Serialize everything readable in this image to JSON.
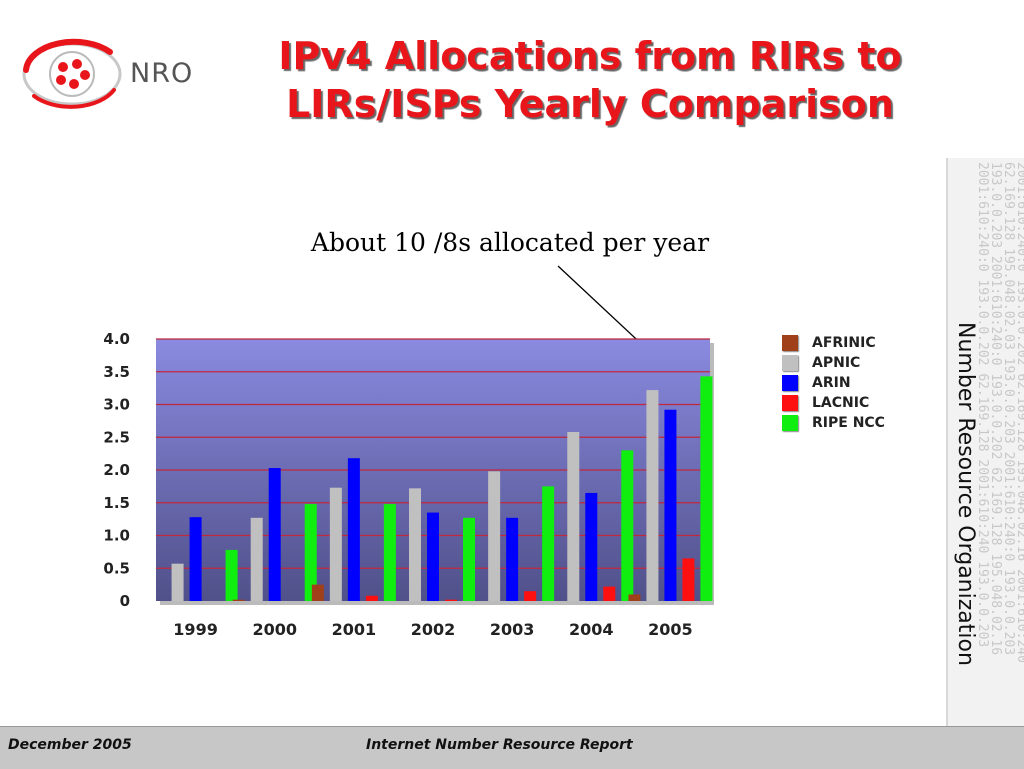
{
  "header": {
    "logo_text": "NRO",
    "title_line1": "IPv4 Allocations from RIRs to",
    "title_line2": "LIRs/ISPs Yearly Comparison"
  },
  "annotation": {
    "text": "About 10 /8s allocated per year"
  },
  "sidebar": {
    "label": "Number Resource Organization",
    "deco_lines": [
      "2001:610:240:0 193.0.0.202 62.169.128 195.048.02.16 2001:610:240",
      "62.169.128 195.048.02.03 193.0.0.203 2001:610:240:0 193.0.0.203",
      "193.0.0.203 2001:610:240:0 193.0.0.202 62.169.128 195.048.02.16",
      "2001:610:240:0 193.0.0.202 62.169.128 2001:610:240 193.0.0.203"
    ]
  },
  "footer": {
    "date": "December  2005",
    "report": "Internet Number Resource Report"
  },
  "colors": {
    "title": "#e8161b",
    "plot_top": "#8a8ae0",
    "plot_bottom": "#50508a",
    "gridline": "#c0283c"
  },
  "chart_data": {
    "type": "bar",
    "title": "",
    "xlabel": "",
    "ylabel": "",
    "ylim": [
      0,
      4
    ],
    "y_ticks": [
      "0",
      "0.5",
      "1.0",
      "1.5",
      "2.0",
      "2.5",
      "3.0",
      "3.5",
      "4.0"
    ],
    "y_tick_values": [
      0,
      0.5,
      1,
      1.5,
      2,
      2.5,
      3,
      3.5,
      4
    ],
    "categories": [
      "1999",
      "2000",
      "2001",
      "2002",
      "2003",
      "2004",
      "2005"
    ],
    "legend_position": "right",
    "series": [
      {
        "name": "AFRINIC",
        "color": "#a0401a",
        "values": [
          0,
          0.02,
          0.25,
          0,
          0,
          0,
          0.1
        ]
      },
      {
        "name": "APNIC",
        "color": "#c0c0c0",
        "values": [
          0.57,
          1.27,
          1.73,
          1.72,
          1.98,
          2.58,
          3.22
        ]
      },
      {
        "name": "ARIN",
        "color": "#0000ff",
        "values": [
          1.28,
          2.03,
          2.18,
          1.35,
          1.27,
          1.65,
          2.92
        ]
      },
      {
        "name": "LACNIC",
        "color": "#ff1010",
        "values": [
          0,
          0,
          0.08,
          0.02,
          0.15,
          0.22,
          0.65
        ]
      },
      {
        "name": "RIPE NCC",
        "color": "#10ee10",
        "values": [
          0.78,
          1.48,
          1.48,
          1.27,
          1.75,
          2.3,
          3.43
        ]
      }
    ]
  }
}
